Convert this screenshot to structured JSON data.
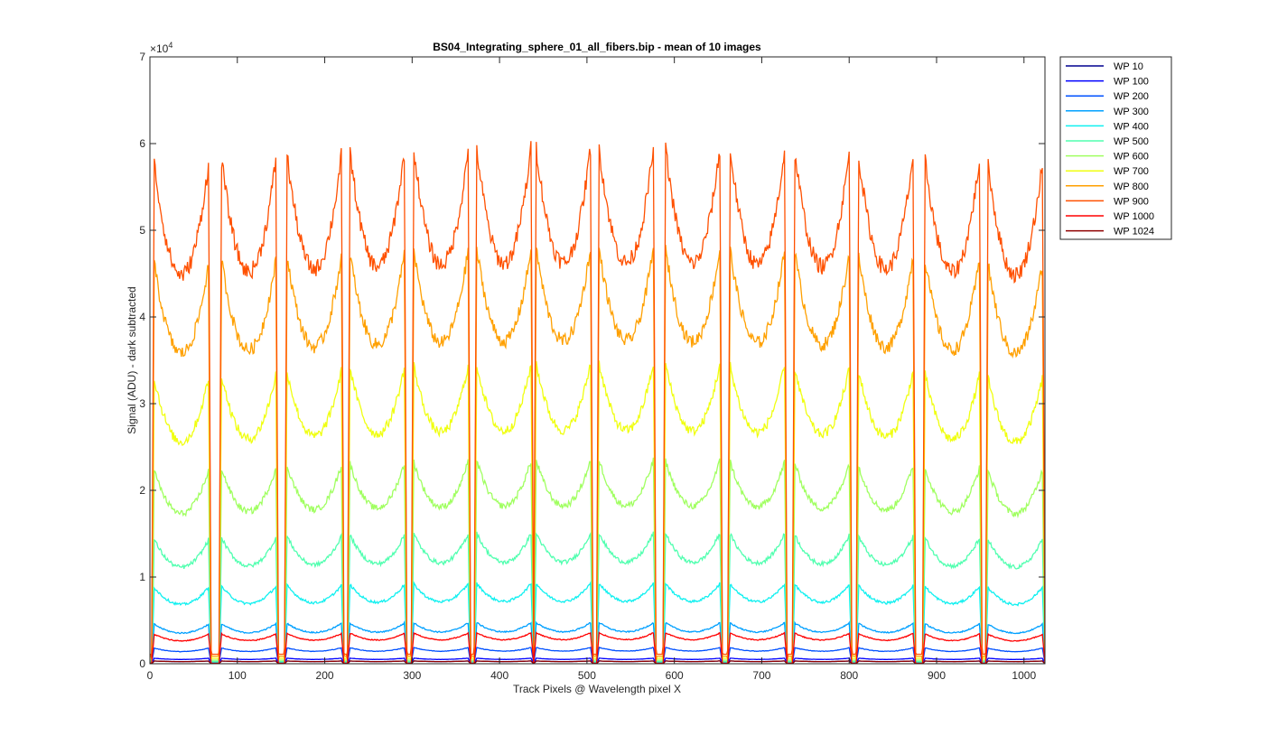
{
  "chart_data": {
    "type": "line",
    "title": "BS04_Integrating_sphere_01_all_fibers.bip - mean of 10 images",
    "xlabel": "Track Pixels @ Wavelength pixel X",
    "ylabel": "Signal (ADU) - dark subtracted",
    "xlim": [
      0,
      1024
    ],
    "ylim": [
      0,
      70000
    ],
    "y_exponent_label": "×10",
    "y_exponent": "4",
    "x_ticks": [
      0,
      100,
      200,
      300,
      400,
      500,
      600,
      700,
      800,
      900,
      1000
    ],
    "x_tick_labels": [
      "0",
      "100",
      "200",
      "300",
      "400",
      "500",
      "600",
      "700",
      "800",
      "900",
      "1000"
    ],
    "y_ticks": [
      0,
      10000,
      20000,
      30000,
      40000,
      50000,
      60000,
      70000
    ],
    "y_tick_labels": [
      "0",
      "1",
      "2",
      "3",
      "4",
      "5",
      "6",
      "7"
    ],
    "legend_position": "outside-top-right",
    "fiber_centers": [
      36,
      113,
      188,
      260,
      333,
      405,
      473,
      545,
      621,
      695,
      769,
      842,
      918,
      990
    ],
    "series": [
      {
        "name": "WP 10",
        "color": "#00008f",
        "level": 300,
        "rise": 0.05
      },
      {
        "name": "WP 100",
        "color": "#0000ff",
        "level": 600,
        "rise": 0.05
      },
      {
        "name": "WP 200",
        "color": "#0050ff",
        "level": 1700,
        "rise": 0.15
      },
      {
        "name": "WP 300",
        "color": "#00a0ff",
        "level": 4300,
        "rise": 0.15
      },
      {
        "name": "WP 400",
        "color": "#10f0f0",
        "level": 8300,
        "rise": 0.2
      },
      {
        "name": "WP 500",
        "color": "#50ffaf",
        "level": 13500,
        "rise": 0.2
      },
      {
        "name": "WP 600",
        "color": "#a0ff60",
        "level": 21000,
        "rise": 0.2
      },
      {
        "name": "WP 700",
        "color": "#f0ff10",
        "level": 31000,
        "rise": 0.2
      },
      {
        "name": "WP 800",
        "color": "#ffa000",
        "level": 43500,
        "rise": 0.15
      },
      {
        "name": "WP 900",
        "color": "#ff5000",
        "level": 54500,
        "rise": 0.12
      },
      {
        "name": "WP 1000",
        "color": "#ff0000",
        "level": 3200,
        "rise": 0.2
      },
      {
        "name": "WP 1024",
        "color": "#8f0000",
        "level": 300,
        "rise": 0.05
      }
    ]
  }
}
